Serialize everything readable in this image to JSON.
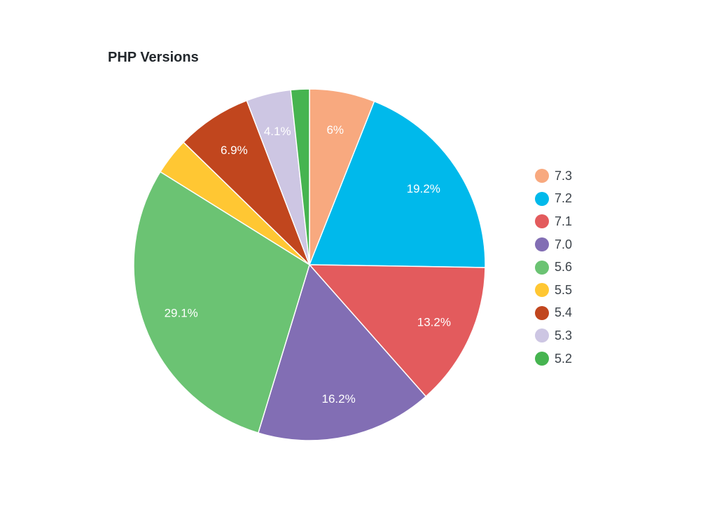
{
  "chart_data": {
    "type": "pie",
    "title": "PHP Versions",
    "legend_position": "right",
    "slices": [
      {
        "label": "7.3",
        "value": 6.0,
        "display": "6%",
        "color": "#f8a97f"
      },
      {
        "label": "7.2",
        "value": 19.2,
        "display": "19.2%",
        "color": "#00b9eb"
      },
      {
        "label": "7.1",
        "value": 13.2,
        "display": "13.2%",
        "color": "#e35b5d"
      },
      {
        "label": "7.0",
        "value": 16.2,
        "display": "16.2%",
        "color": "#826eb4"
      },
      {
        "label": "5.6",
        "value": 29.1,
        "display": "29.1%",
        "color": "#6bc373"
      },
      {
        "label": "5.5",
        "value": 3.4,
        "display": "",
        "color": "#ffc733"
      },
      {
        "label": "5.4",
        "value": 6.9,
        "display": "6.9%",
        "color": "#c1461e"
      },
      {
        "label": "5.3",
        "value": 4.1,
        "display": "4.1%",
        "color": "#cdc6e3"
      },
      {
        "label": "5.2",
        "value": 1.7,
        "display": "",
        "color": "#46b450"
      }
    ]
  }
}
